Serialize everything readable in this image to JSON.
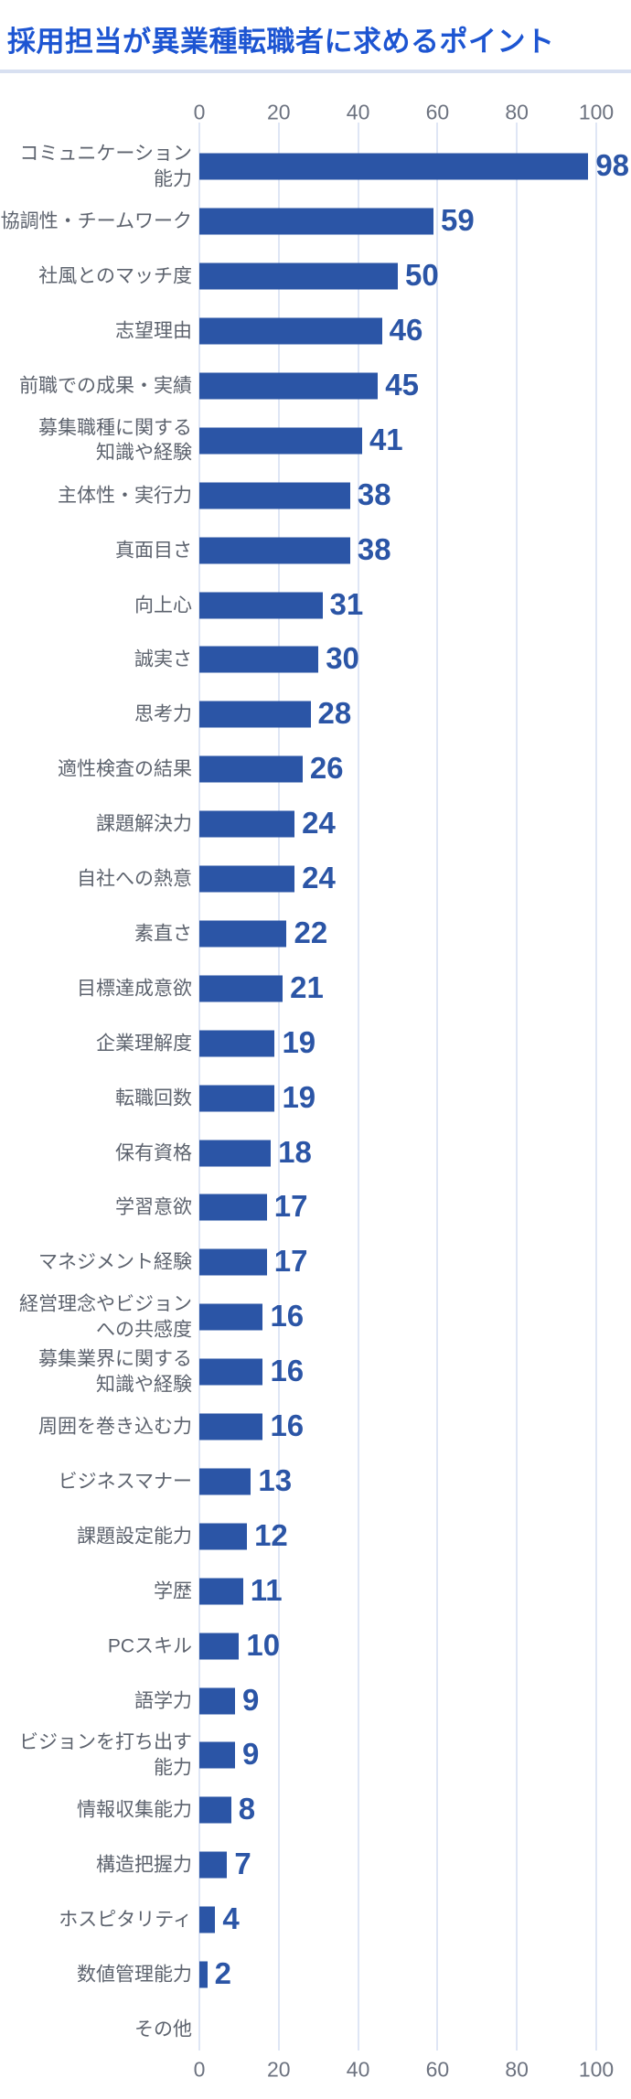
{
  "title": "採用担当が異業種転職者に求めるポイント",
  "colors": {
    "title": "#1d55d2",
    "title_rule": "#d8e0f1",
    "bar": "#2b55a6",
    "value_label": "#2b55a6",
    "category_label": "#5d636e",
    "axis_label": "#6d7380",
    "gridline": "#dfe6f5",
    "background": "#ffffff"
  },
  "chart_data": {
    "type": "bar",
    "orientation": "horizontal",
    "title": "採用担当が異業種転職者に求めるポイント",
    "xlabel": "",
    "ylabel": "",
    "xlim": [
      0,
      100
    ],
    "x_ticks": [
      0,
      20,
      40,
      60,
      80,
      100
    ],
    "x_axis_positions": [
      "top",
      "bottom"
    ],
    "grid": true,
    "value_labels_shown": true,
    "categories": [
      "コミュニケーション\n能力",
      "協調性・チームワーク",
      "社風とのマッチ度",
      "志望理由",
      "前職での成果・実績",
      "募集職種に関する\n知識や経験",
      "主体性・実行力",
      "真面目さ",
      "向上心",
      "誠実さ",
      "思考力",
      "適性検査の結果",
      "課題解決力",
      "自社への熱意",
      "素直さ",
      "目標達成意欲",
      "企業理解度",
      "転職回数",
      "保有資格",
      "学習意欲",
      "マネジメント経験",
      "経営理念やビジョン\nへの共感度",
      "募集業界に関する\n知識や経験",
      "周囲を巻き込む力",
      "ビジネスマナー",
      "課題設定能力",
      "学歴",
      "PCスキル",
      "語学力",
      "ビジョンを打ち出す\n能力",
      "情報収集能力",
      "構造把握力",
      "ホスピタリティ",
      "数値管理能力",
      "その他"
    ],
    "values": [
      98,
      59,
      50,
      46,
      45,
      41,
      38,
      38,
      31,
      30,
      28,
      26,
      24,
      24,
      22,
      21,
      19,
      19,
      18,
      17,
      17,
      16,
      16,
      16,
      13,
      12,
      11,
      10,
      9,
      9,
      8,
      7,
      4,
      2,
      0
    ]
  }
}
